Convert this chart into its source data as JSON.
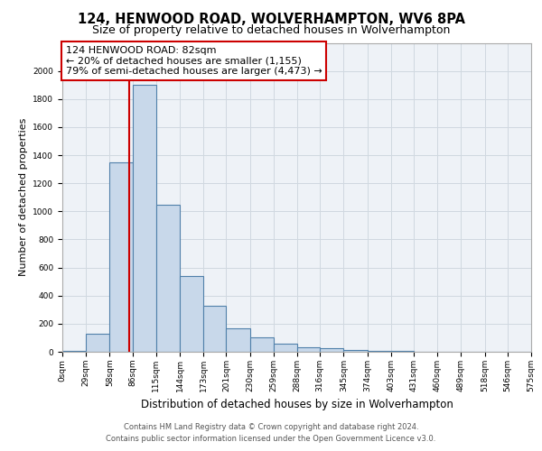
{
  "title_line1": "124, HENWOOD ROAD, WOLVERHAMPTON, WV6 8PA",
  "title_line2": "Size of property relative to detached houses in Wolverhampton",
  "xlabel": "Distribution of detached houses by size in Wolverhampton",
  "ylabel": "Number of detached properties",
  "footer_line1": "Contains HM Land Registry data © Crown copyright and database right 2024.",
  "footer_line2": "Contains public sector information licensed under the Open Government Licence v3.0.",
  "annotation_line1": "124 HENWOOD ROAD: 82sqm",
  "annotation_line2": "← 20% of detached houses are smaller (1,155)",
  "annotation_line3": "79% of semi-detached houses are larger (4,473) →",
  "property_size_sqm": 82,
  "bar_color": "#c8d8ea",
  "bar_edge_color": "#5080aa",
  "vline_color": "#cc0000",
  "annotation_box_color": "#cc0000",
  "background_color": "#ffffff",
  "grid_color": "#d0d8e0",
  "ax_bg_color": "#eef2f7",
  "ylim": [
    0,
    2200
  ],
  "ytick_interval": 200,
  "bin_edges": [
    0,
    29,
    58,
    86,
    115,
    144,
    173,
    201,
    230,
    259,
    288,
    316,
    345,
    374,
    403,
    431,
    460,
    489,
    518,
    546,
    575
  ],
  "bar_heights": [
    8,
    130,
    1350,
    1900,
    1050,
    540,
    330,
    165,
    105,
    55,
    30,
    25,
    15,
    8,
    5,
    3,
    3,
    2,
    1,
    2
  ],
  "tick_labels": [
    "0sqm",
    "29sqm",
    "58sqm",
    "86sqm",
    "115sqm",
    "144sqm",
    "173sqm",
    "201sqm",
    "230sqm",
    "259sqm",
    "288sqm",
    "316sqm",
    "345sqm",
    "374sqm",
    "403sqm",
    "431sqm",
    "460sqm",
    "489sqm",
    "518sqm",
    "546sqm",
    "575sqm"
  ],
  "title_fontsize": 10.5,
  "subtitle_fontsize": 9,
  "ylabel_fontsize": 8,
  "xlabel_fontsize": 8.5,
  "tick_fontsize": 6.5,
  "annotation_fontsize": 8,
  "footer_fontsize": 6.0
}
